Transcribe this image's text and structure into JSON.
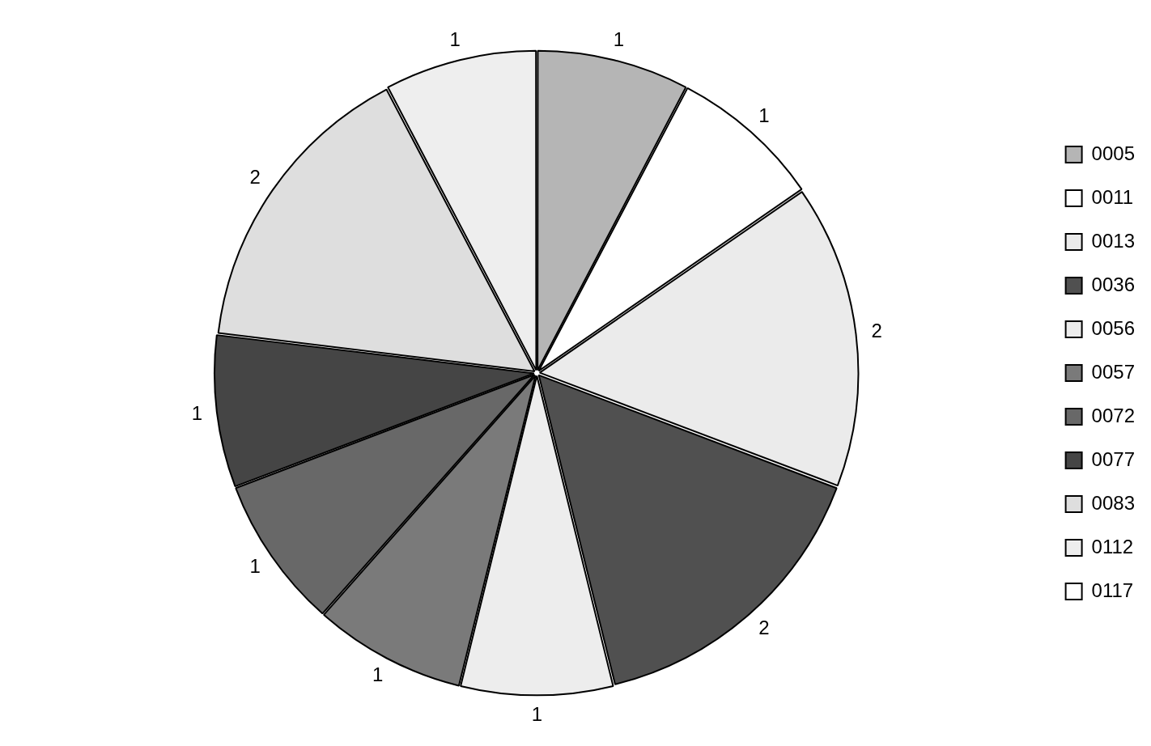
{
  "chart_data": {
    "type": "pie",
    "categories": [
      "0005",
      "0011",
      "0013",
      "0036",
      "0056",
      "0057",
      "0072",
      "0077",
      "0083",
      "0112",
      "0117"
    ],
    "values": [
      1,
      1,
      2,
      2,
      1,
      1,
      1,
      1,
      2,
      1,
      0
    ],
    "colors": [
      "#b5b5b5",
      "#ffffff",
      "#ebebeb",
      "#505050",
      "#ededed",
      "#7a7a7a",
      "#686868",
      "#454545",
      "#dedede",
      "#eeeeee",
      "#ffffff"
    ],
    "value_labels": [
      "1",
      "1",
      "2",
      "2",
      "1",
      "1",
      "1",
      "1",
      "2",
      "1",
      null
    ],
    "legend": "right"
  }
}
